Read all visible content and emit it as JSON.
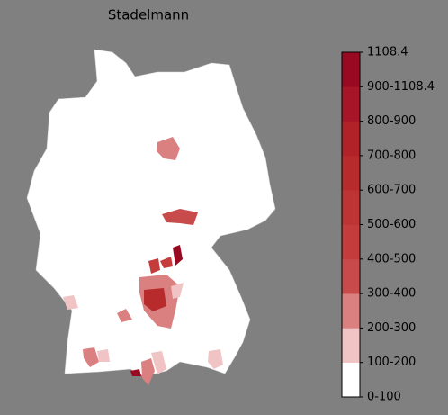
{
  "title": "Stadelmann",
  "colorbar": {
    "labels": [
      "0-100",
      "100-200",
      "200-300",
      "300-400",
      "400-500",
      "500-600",
      "600-700",
      "700-800",
      "800-900",
      "900-1108.4",
      "1108.4"
    ],
    "colors": [
      "#ffffff",
      "#f0c4c4",
      "#db8080",
      "#c94a4a",
      "#c43c3c",
      "#be3434",
      "#b82b2d",
      "#b02228",
      "#a61628",
      "#990a22"
    ]
  }
}
